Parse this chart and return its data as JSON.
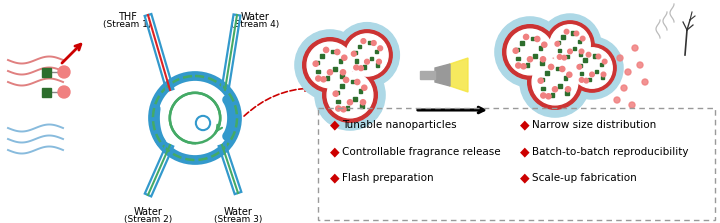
{
  "bg_color": "#ffffff",
  "legend_items_left": [
    "Tunable nanoparticles",
    "Controllable fragrance release",
    "Flash preparation"
  ],
  "legend_items_right": [
    "Narrow size distribution",
    "Batch-to-batch reproducibility",
    "Scale-up fabrication"
  ],
  "diamond_color": "#cc0000",
  "blue_tube": "#3399cc",
  "green_chamber": "#44aa66",
  "light_blue_halo": "#add8e6",
  "red_ring": "#cc3333",
  "green_dot": "#2d6e2d",
  "pink_dot": "#f08080",
  "wave_red": "#e08080",
  "wave_blue": "#88bbdd",
  "red_arrow": "#cc0000",
  "dashed_red": "#cc0000"
}
